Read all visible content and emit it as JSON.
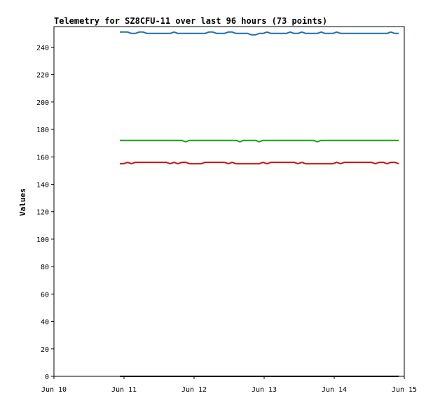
{
  "chart_data": {
    "type": "line",
    "title": "Telemetry for SZ8CFU-11 over last 96 hours (73 points)",
    "xlabel": "",
    "ylabel": "Values",
    "x_ticks": [
      "Jun 10",
      "Jun 11",
      "Jun 12",
      "Jun 13",
      "Jun 14",
      "Jun 15"
    ],
    "xlim_days": [
      0,
      5
    ],
    "ylim": [
      0,
      255
    ],
    "y_ticks": [
      0,
      20,
      40,
      60,
      80,
      100,
      120,
      140,
      160,
      180,
      200,
      220,
      240
    ],
    "grid": false,
    "legend": "none",
    "series": [
      {
        "color": "#1f6fb4",
        "x_start_day": 0.94,
        "x_end_day": 4.92,
        "values": [
          251,
          251,
          251,
          250,
          250,
          251,
          251,
          250,
          250,
          250,
          250,
          250,
          250,
          250,
          251,
          250,
          250,
          250,
          250,
          250,
          250,
          250,
          250,
          251,
          251,
          250,
          250,
          250,
          251,
          251,
          250,
          250,
          250,
          250,
          249,
          249,
          250,
          250,
          251,
          250,
          250,
          250,
          250,
          250,
          251,
          250,
          250,
          251,
          250,
          250,
          250,
          250,
          251,
          250,
          250,
          250,
          251,
          250,
          250,
          250,
          250,
          250,
          250,
          250,
          250,
          250,
          250,
          250,
          250,
          250,
          251,
          250,
          250
        ]
      },
      {
        "color": "#10a010",
        "x_start_day": 0.94,
        "x_end_day": 4.92,
        "values": [
          172,
          172,
          172,
          172,
          172,
          172,
          172,
          172,
          172,
          172,
          172,
          172,
          172,
          172,
          172,
          172,
          172,
          171,
          172,
          172,
          172,
          172,
          172,
          172,
          172,
          172,
          172,
          172,
          172,
          172,
          172,
          171,
          172,
          172,
          172,
          172,
          171,
          172,
          172,
          172,
          172,
          172,
          172,
          172,
          172,
          172,
          172,
          172,
          172,
          172,
          172,
          171,
          172,
          172,
          172,
          172,
          172,
          172,
          172,
          172,
          172,
          172,
          172,
          172,
          172,
          172,
          172,
          172,
          172,
          172,
          172,
          172,
          172
        ]
      },
      {
        "color": "#d01010",
        "x_start_day": 0.94,
        "x_end_day": 4.92,
        "values": [
          155,
          155,
          156,
          155,
          156,
          156,
          156,
          156,
          156,
          156,
          156,
          156,
          156,
          155,
          156,
          155,
          156,
          156,
          155,
          155,
          155,
          155,
          156,
          156,
          156,
          156,
          156,
          156,
          155,
          156,
          155,
          155,
          155,
          155,
          155,
          155,
          155,
          156,
          155,
          156,
          156,
          156,
          156,
          156,
          156,
          156,
          155,
          156,
          155,
          155,
          155,
          155,
          155,
          155,
          155,
          155,
          156,
          155,
          156,
          156,
          156,
          156,
          156,
          156,
          156,
          156,
          155,
          156,
          156,
          155,
          156,
          156,
          155
        ]
      },
      {
        "color": "#000000",
        "x_start_day": 0.94,
        "x_end_day": 4.92,
        "values": [
          0,
          0,
          0,
          0,
          0,
          0,
          0,
          0,
          0,
          0,
          0,
          0,
          0,
          0,
          0,
          0,
          0,
          0,
          0,
          0,
          0,
          0,
          0,
          0,
          0,
          0,
          0,
          0,
          0,
          0,
          0,
          0,
          0,
          0,
          0,
          0,
          0,
          0,
          0,
          0,
          0,
          0,
          0,
          0,
          0,
          0,
          0,
          0,
          0,
          0,
          0,
          0,
          0,
          0,
          0,
          0,
          0,
          0,
          0,
          0,
          0,
          0,
          0,
          0,
          0,
          0,
          0,
          0,
          0,
          0,
          0,
          0,
          0
        ]
      }
    ]
  }
}
